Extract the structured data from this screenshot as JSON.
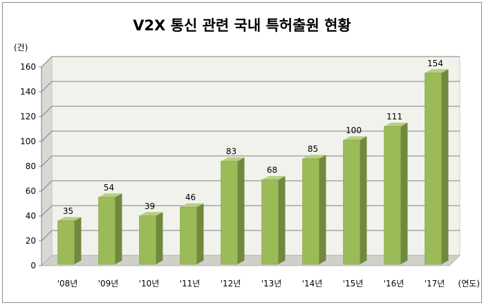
{
  "chart_data": {
    "type": "bar",
    "title": "V2X 통신 관련 국내 특허출원 현황",
    "y_unit": "(건)",
    "x_unit": "(연도)",
    "categories": [
      "'08년",
      "'09년",
      "'10년",
      "'11년",
      "'12년",
      "'13년",
      "'14년",
      "'15년",
      "'16년",
      "'17년"
    ],
    "values": [
      35,
      54,
      39,
      46,
      83,
      68,
      85,
      100,
      111,
      154
    ],
    "ylim": [
      0,
      160
    ],
    "yticks": [
      0,
      20,
      40,
      60,
      80,
      100,
      120,
      140,
      160
    ],
    "grid": true,
    "legend": "none",
    "colors": {
      "bar_front": "#9bbb59",
      "bar_side": "#71893f",
      "bar_top": "#b7cf82",
      "wall": "#f2f2ed",
      "wall_side": "#d9d9d4",
      "floor": "#d0d0cb",
      "grid": "#7f7f7f"
    }
  }
}
